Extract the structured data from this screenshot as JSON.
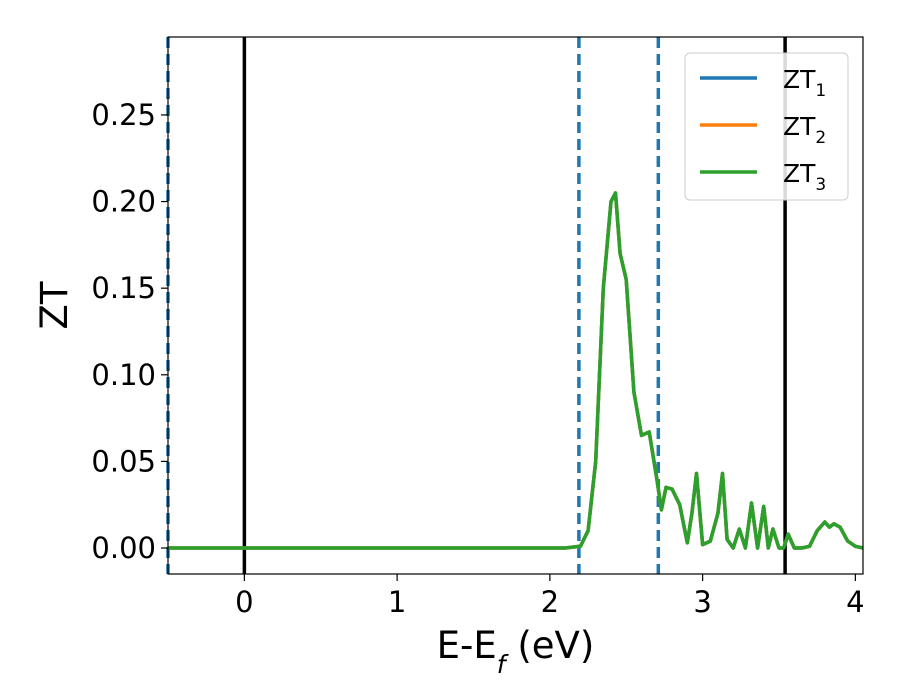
{
  "chart_data": {
    "type": "line",
    "title": "",
    "xlabel": "E-E",
    "xlabel_sub": "f",
    "xlabel_unit": " (eV)",
    "ylabel": "ZT",
    "xlim": [
      -0.5,
      4.05
    ],
    "ylim": [
      -0.015,
      0.295
    ],
    "x_ticks": [
      0,
      1,
      2,
      3,
      4
    ],
    "x_tick_labels": [
      "0",
      "1",
      "2",
      "3",
      "4"
    ],
    "y_ticks": [
      0.0,
      0.05,
      0.1,
      0.15,
      0.2,
      0.25
    ],
    "y_tick_labels": [
      "0.00",
      "0.05",
      "0.10",
      "0.15",
      "0.20",
      "0.25"
    ],
    "grid": false,
    "legend_position": "top-right",
    "series": [
      {
        "name": "ZT",
        "name_sub": "1",
        "color": "#1f77b4",
        "x": [
          -0.5,
          2.1,
          2.2,
          2.25,
          2.3,
          2.35,
          2.4,
          2.43,
          2.46,
          2.5,
          2.55,
          2.6,
          2.65,
          2.7,
          2.73,
          2.76,
          2.8,
          2.85,
          2.9,
          2.93,
          2.96,
          3.0,
          3.05,
          3.1,
          3.13,
          3.16,
          3.2,
          3.24,
          3.28,
          3.32,
          3.36,
          3.4,
          3.43,
          3.46,
          3.5,
          3.53,
          3.56,
          3.6,
          3.65,
          3.7,
          3.75,
          3.8,
          3.83,
          3.86,
          3.9,
          3.95,
          4.0,
          4.05
        ],
        "y": [
          0.0,
          0.0,
          0.001,
          0.01,
          0.05,
          0.15,
          0.2,
          0.205,
          0.17,
          0.155,
          0.09,
          0.065,
          0.067,
          0.04,
          0.022,
          0.035,
          0.034,
          0.025,
          0.003,
          0.02,
          0.043,
          0.002,
          0.004,
          0.02,
          0.043,
          0.005,
          0.0,
          0.011,
          0.0,
          0.026,
          0.0,
          0.024,
          0.0,
          0.011,
          0.0,
          0.0,
          0.008,
          0.0,
          0.0,
          0.001,
          0.01,
          0.015,
          0.012,
          0.014,
          0.012,
          0.004,
          0.001,
          0.0
        ]
      },
      {
        "name": "ZT",
        "name_sub": "2",
        "color": "#ff7f0e",
        "x": [
          -0.5,
          2.1,
          2.2,
          2.25,
          2.3,
          2.35,
          2.4,
          2.43,
          2.46,
          2.5,
          2.55,
          2.6,
          2.65,
          2.7,
          2.73,
          2.76,
          2.8,
          2.85,
          2.9,
          2.93,
          2.96,
          3.0,
          3.05,
          3.1,
          3.13,
          3.16,
          3.2,
          3.24,
          3.28,
          3.32,
          3.36,
          3.4,
          3.43,
          3.46,
          3.5,
          3.53,
          3.56,
          3.6,
          3.65,
          3.7,
          3.75,
          3.8,
          3.83,
          3.86,
          3.9,
          3.95,
          4.0,
          4.05
        ],
        "y": [
          0.0,
          0.0,
          0.001,
          0.01,
          0.05,
          0.15,
          0.2,
          0.205,
          0.17,
          0.155,
          0.09,
          0.065,
          0.067,
          0.04,
          0.022,
          0.035,
          0.034,
          0.025,
          0.003,
          0.02,
          0.043,
          0.002,
          0.004,
          0.02,
          0.043,
          0.005,
          0.0,
          0.011,
          0.0,
          0.026,
          0.0,
          0.024,
          0.0,
          0.011,
          0.0,
          0.0,
          0.008,
          0.0,
          0.0,
          0.001,
          0.01,
          0.015,
          0.012,
          0.014,
          0.012,
          0.004,
          0.001,
          0.0
        ]
      },
      {
        "name": "ZT",
        "name_sub": "3",
        "color": "#2ca02c",
        "x": [
          -0.5,
          2.1,
          2.2,
          2.25,
          2.3,
          2.35,
          2.4,
          2.43,
          2.46,
          2.5,
          2.55,
          2.6,
          2.65,
          2.7,
          2.73,
          2.76,
          2.8,
          2.85,
          2.9,
          2.93,
          2.96,
          3.0,
          3.05,
          3.1,
          3.13,
          3.16,
          3.2,
          3.24,
          3.28,
          3.32,
          3.36,
          3.4,
          3.43,
          3.46,
          3.5,
          3.53,
          3.56,
          3.6,
          3.65,
          3.7,
          3.75,
          3.8,
          3.83,
          3.86,
          3.9,
          3.95,
          4.0,
          4.05
        ],
        "y": [
          0.0,
          0.0,
          0.001,
          0.01,
          0.05,
          0.15,
          0.2,
          0.205,
          0.17,
          0.155,
          0.09,
          0.065,
          0.067,
          0.04,
          0.022,
          0.035,
          0.034,
          0.025,
          0.003,
          0.02,
          0.043,
          0.002,
          0.004,
          0.02,
          0.043,
          0.005,
          0.0,
          0.011,
          0.0,
          0.026,
          0.0,
          0.024,
          0.0,
          0.011,
          0.0,
          0.0,
          0.008,
          0.0,
          0.0,
          0.001,
          0.01,
          0.015,
          0.012,
          0.014,
          0.012,
          0.004,
          0.001,
          0.0
        ]
      }
    ],
    "vertical_lines": [
      {
        "x": -0.5,
        "style": "dashed",
        "color": "#1f77b4"
      },
      {
        "x": 0.0,
        "style": "solid",
        "color": "#000000"
      },
      {
        "x": 2.19,
        "style": "dashed",
        "color": "#1f77b4"
      },
      {
        "x": 2.71,
        "style": "dashed",
        "color": "#1f77b4"
      },
      {
        "x": 3.54,
        "style": "solid",
        "color": "#000000"
      }
    ]
  }
}
